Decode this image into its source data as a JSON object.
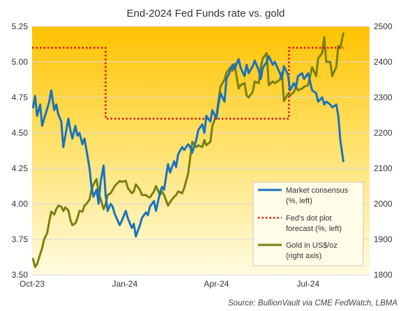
{
  "chart_data": {
    "type": "line",
    "title": "End-2024 Fed Funds rate vs. gold",
    "source": "Source:  BullionVault via CME FedWatch, LBMA",
    "x_start": "2023-10-01",
    "x_end": "2024-08-31",
    "x_ticks": [
      {
        "label": "Oct-23",
        "date": "2023-10-01"
      },
      {
        "label": "Jan-24",
        "date": "2024-01-01"
      },
      {
        "label": "Apr-24",
        "date": "2024-04-01"
      },
      {
        "label": "Jul-24",
        "date": "2024-07-01"
      }
    ],
    "y_left": {
      "ylim": [
        3.5,
        5.25
      ],
      "ticks": [
        "3.50",
        "3.75",
        "4.00",
        "4.25",
        "4.50",
        "4.75",
        "5.00",
        "5.25"
      ],
      "grid": true
    },
    "y_right": {
      "ylim": [
        1800,
        2500
      ],
      "ticks": [
        "1800",
        "1900",
        "2000",
        "2100",
        "2200",
        "2300",
        "2400",
        "2500"
      ]
    },
    "legend": {
      "position": "bottom-right",
      "entries": [
        {
          "line1": "Market consensus",
          "line2": "(%, left)"
        },
        {
          "line1": "Fed's dot plot",
          "line2": "forecast (%, left)"
        },
        {
          "line1": "Gold in US$/oz",
          "line2": "(right axis)"
        }
      ]
    },
    "series": [
      {
        "name": "Market consensus (%, left)",
        "axis": "left",
        "color": "#1a72bb",
        "style": "solid",
        "points": [
          [
            "2023-10-02",
            4.68
          ],
          [
            "2023-10-04",
            4.76
          ],
          [
            "2023-10-06",
            4.62
          ],
          [
            "2023-10-09",
            4.7
          ],
          [
            "2023-10-11",
            4.55
          ],
          [
            "2023-10-13",
            4.6
          ],
          [
            "2023-10-16",
            4.67
          ],
          [
            "2023-10-18",
            4.72
          ],
          [
            "2023-10-20",
            4.8
          ],
          [
            "2023-10-23",
            4.66
          ],
          [
            "2023-10-25",
            4.7
          ],
          [
            "2023-10-27",
            4.63
          ],
          [
            "2023-10-30",
            4.58
          ],
          [
            "2023-11-01",
            4.4
          ],
          [
            "2023-11-03",
            4.48
          ],
          [
            "2023-11-06",
            4.6
          ],
          [
            "2023-11-08",
            4.52
          ],
          [
            "2023-11-10",
            4.46
          ],
          [
            "2023-11-13",
            4.55
          ],
          [
            "2023-11-15",
            4.48
          ],
          [
            "2023-11-17",
            4.5
          ],
          [
            "2023-11-20",
            4.42
          ],
          [
            "2023-11-22",
            4.46
          ],
          [
            "2023-11-24",
            4.38
          ],
          [
            "2023-11-27",
            4.25
          ],
          [
            "2023-11-29",
            4.12
          ],
          [
            "2023-12-01",
            4.05
          ],
          [
            "2023-12-04",
            4.1
          ],
          [
            "2023-12-06",
            4.0
          ],
          [
            "2023-12-08",
            4.15
          ],
          [
            "2023-12-11",
            4.27
          ],
          [
            "2023-12-13",
            4.06
          ],
          [
            "2023-12-15",
            3.95
          ],
          [
            "2023-12-18",
            4.0
          ],
          [
            "2023-12-20",
            3.98
          ],
          [
            "2023-12-22",
            3.93
          ],
          [
            "2023-12-27",
            3.85
          ],
          [
            "2023-12-29",
            3.88
          ],
          [
            "2024-01-02",
            3.95
          ],
          [
            "2024-01-04",
            3.9
          ],
          [
            "2024-01-08",
            3.83
          ],
          [
            "2024-01-10",
            3.86
          ],
          [
            "2024-01-12",
            3.77
          ],
          [
            "2024-01-16",
            3.85
          ],
          [
            "2024-01-18",
            3.9
          ],
          [
            "2024-01-22",
            3.94
          ],
          [
            "2024-01-24",
            3.92
          ],
          [
            "2024-01-26",
            3.98
          ],
          [
            "2024-01-30",
            4.02
          ],
          [
            "2024-02-01",
            3.95
          ],
          [
            "2024-02-05",
            4.08
          ],
          [
            "2024-02-07",
            4.12
          ],
          [
            "2024-02-09",
            4.1
          ],
          [
            "2024-02-13",
            4.28
          ],
          [
            "2024-02-15",
            4.22
          ],
          [
            "2024-02-19",
            4.3
          ],
          [
            "2024-02-21",
            4.26
          ],
          [
            "2024-02-23",
            4.35
          ],
          [
            "2024-02-27",
            4.4
          ],
          [
            "2024-02-29",
            4.38
          ],
          [
            "2024-03-04",
            4.42
          ],
          [
            "2024-03-06",
            4.4
          ],
          [
            "2024-03-08",
            4.36
          ],
          [
            "2024-03-12",
            4.45
          ],
          [
            "2024-03-14",
            4.52
          ],
          [
            "2024-03-18",
            4.56
          ],
          [
            "2024-03-20",
            4.5
          ],
          [
            "2024-03-22",
            4.62
          ],
          [
            "2024-03-26",
            4.58
          ],
          [
            "2024-03-28",
            4.66
          ],
          [
            "2024-04-01",
            4.6
          ],
          [
            "2024-04-03",
            4.7
          ],
          [
            "2024-04-05",
            4.78
          ],
          [
            "2024-04-09",
            4.72
          ],
          [
            "2024-04-11",
            4.88
          ],
          [
            "2024-04-15",
            4.94
          ],
          [
            "2024-04-17",
            4.98
          ],
          [
            "2024-04-19",
            4.95
          ],
          [
            "2024-04-23",
            5.02
          ],
          [
            "2024-04-25",
            4.96
          ],
          [
            "2024-04-29",
            4.9
          ],
          [
            "2024-05-01",
            4.98
          ],
          [
            "2024-05-03",
            4.92
          ],
          [
            "2024-05-07",
            4.97
          ],
          [
            "2024-05-09",
            5.01
          ],
          [
            "2024-05-13",
            4.94
          ],
          [
            "2024-05-15",
            4.88
          ],
          [
            "2024-05-17",
            4.96
          ],
          [
            "2024-05-21",
            5.0
          ],
          [
            "2024-05-23",
            5.04
          ],
          [
            "2024-05-27",
            4.98
          ],
          [
            "2024-05-29",
            5.0
          ],
          [
            "2024-06-03",
            4.92
          ],
          [
            "2024-06-05",
            4.88
          ],
          [
            "2024-06-07",
            4.97
          ],
          [
            "2024-06-11",
            4.91
          ],
          [
            "2024-06-13",
            4.8
          ],
          [
            "2024-06-17",
            4.85
          ],
          [
            "2024-06-19",
            4.82
          ],
          [
            "2024-06-21",
            4.9
          ],
          [
            "2024-06-25",
            4.92
          ],
          [
            "2024-06-27",
            4.88
          ],
          [
            "2024-07-01",
            4.92
          ],
          [
            "2024-07-03",
            4.86
          ],
          [
            "2024-07-05",
            4.8
          ],
          [
            "2024-07-09",
            4.78
          ],
          [
            "2024-07-11",
            4.72
          ],
          [
            "2024-07-15",
            4.75
          ],
          [
            "2024-07-17",
            4.7
          ],
          [
            "2024-07-19",
            4.72
          ],
          [
            "2024-07-23",
            4.7
          ],
          [
            "2024-07-25",
            4.68
          ],
          [
            "2024-07-29",
            4.7
          ],
          [
            "2024-07-31",
            4.62
          ],
          [
            "2024-08-02",
            4.45
          ],
          [
            "2024-08-05",
            4.3
          ]
        ]
      },
      {
        "name": "Fed's dot plot forecast (%, left)",
        "axis": "left",
        "color": "#e01010",
        "style": "dotted",
        "points": [
          [
            "2023-10-01",
            5.1
          ],
          [
            "2023-12-13",
            5.1
          ],
          [
            "2023-12-13",
            4.6
          ],
          [
            "2024-06-12",
            4.6
          ],
          [
            "2024-06-12",
            5.1
          ],
          [
            "2024-08-05",
            5.1
          ]
        ]
      },
      {
        "name": "Gold in US$/oz (right axis)",
        "axis": "right",
        "color": "#7a8010",
        "style": "solid",
        "points": [
          [
            "2023-10-02",
            1845
          ],
          [
            "2023-10-04",
            1822
          ],
          [
            "2023-10-06",
            1830
          ],
          [
            "2023-10-09",
            1858
          ],
          [
            "2023-10-11",
            1875
          ],
          [
            "2023-10-13",
            1900
          ],
          [
            "2023-10-16",
            1918
          ],
          [
            "2023-10-18",
            1950
          ],
          [
            "2023-10-20",
            1978
          ],
          [
            "2023-10-23",
            1970
          ],
          [
            "2023-10-25",
            1985
          ],
          [
            "2023-10-27",
            1995
          ],
          [
            "2023-10-30",
            1992
          ],
          [
            "2023-11-01",
            1980
          ],
          [
            "2023-11-03",
            1990
          ],
          [
            "2023-11-06",
            1982
          ],
          [
            "2023-11-08",
            1955
          ],
          [
            "2023-11-10",
            1940
          ],
          [
            "2023-11-13",
            1945
          ],
          [
            "2023-11-15",
            1960
          ],
          [
            "2023-11-17",
            1980
          ],
          [
            "2023-11-20",
            1978
          ],
          [
            "2023-11-22",
            1995
          ],
          [
            "2023-11-24",
            2000
          ],
          [
            "2023-11-27",
            2012
          ],
          [
            "2023-11-29",
            2040
          ],
          [
            "2023-12-01",
            2055
          ],
          [
            "2023-12-04",
            2070
          ],
          [
            "2023-12-06",
            2030
          ],
          [
            "2023-12-08",
            2015
          ],
          [
            "2023-12-11",
            1985
          ],
          [
            "2023-12-13",
            2000
          ],
          [
            "2023-12-15",
            2025
          ],
          [
            "2023-12-18",
            2030
          ],
          [
            "2023-12-20",
            2040
          ],
          [
            "2023-12-22",
            2050
          ],
          [
            "2023-12-27",
            2065
          ],
          [
            "2023-12-29",
            2062
          ],
          [
            "2024-01-02",
            2065
          ],
          [
            "2024-01-04",
            2045
          ],
          [
            "2024-01-08",
            2030
          ],
          [
            "2024-01-10",
            2035
          ],
          [
            "2024-01-12",
            2055
          ],
          [
            "2024-01-16",
            2040
          ],
          [
            "2024-01-18",
            2025
          ],
          [
            "2024-01-22",
            2025
          ],
          [
            "2024-01-24",
            2020
          ],
          [
            "2024-01-26",
            2018
          ],
          [
            "2024-01-30",
            2035
          ],
          [
            "2024-02-01",
            2050
          ],
          [
            "2024-02-05",
            2025
          ],
          [
            "2024-02-07",
            2035
          ],
          [
            "2024-02-09",
            2025
          ],
          [
            "2024-02-13",
            1995
          ],
          [
            "2024-02-15",
            2005
          ],
          [
            "2024-02-19",
            2020
          ],
          [
            "2024-02-21",
            2025
          ],
          [
            "2024-02-23",
            2035
          ],
          [
            "2024-02-27",
            2030
          ],
          [
            "2024-02-29",
            2045
          ],
          [
            "2024-03-04",
            2085
          ],
          [
            "2024-03-06",
            2130
          ],
          [
            "2024-03-08",
            2175
          ],
          [
            "2024-03-12",
            2160
          ],
          [
            "2024-03-14",
            2165
          ],
          [
            "2024-03-18",
            2160
          ],
          [
            "2024-03-20",
            2180
          ],
          [
            "2024-03-22",
            2165
          ],
          [
            "2024-03-26",
            2175
          ],
          [
            "2024-03-28",
            2220
          ],
          [
            "2024-04-01",
            2250
          ],
          [
            "2024-04-03",
            2290
          ],
          [
            "2024-04-05",
            2330
          ],
          [
            "2024-04-09",
            2350
          ],
          [
            "2024-04-11",
            2370
          ],
          [
            "2024-04-15",
            2385
          ],
          [
            "2024-04-17",
            2375
          ],
          [
            "2024-04-19",
            2395
          ],
          [
            "2024-04-23",
            2325
          ],
          [
            "2024-04-25",
            2335
          ],
          [
            "2024-04-29",
            2340
          ],
          [
            "2024-05-01",
            2305
          ],
          [
            "2024-05-03",
            2300
          ],
          [
            "2024-05-07",
            2315
          ],
          [
            "2024-05-09",
            2345
          ],
          [
            "2024-05-13",
            2340
          ],
          [
            "2024-05-15",
            2385
          ],
          [
            "2024-05-17",
            2410
          ],
          [
            "2024-05-21",
            2425
          ],
          [
            "2024-05-23",
            2335
          ],
          [
            "2024-05-27",
            2345
          ],
          [
            "2024-05-29",
            2340
          ],
          [
            "2024-06-03",
            2350
          ],
          [
            "2024-06-05",
            2370
          ],
          [
            "2024-06-07",
            2290
          ],
          [
            "2024-06-11",
            2310
          ],
          [
            "2024-06-13",
            2305
          ],
          [
            "2024-06-17",
            2315
          ],
          [
            "2024-06-19",
            2330
          ],
          [
            "2024-06-21",
            2320
          ],
          [
            "2024-06-25",
            2325
          ],
          [
            "2024-06-27",
            2330
          ],
          [
            "2024-07-01",
            2335
          ],
          [
            "2024-07-03",
            2360
          ],
          [
            "2024-07-05",
            2385
          ],
          [
            "2024-07-09",
            2360
          ],
          [
            "2024-07-11",
            2410
          ],
          [
            "2024-07-15",
            2425
          ],
          [
            "2024-07-17",
            2470
          ],
          [
            "2024-07-19",
            2400
          ],
          [
            "2024-07-23",
            2400
          ],
          [
            "2024-07-25",
            2360
          ],
          [
            "2024-07-29",
            2385
          ],
          [
            "2024-07-31",
            2445
          ],
          [
            "2024-08-02",
            2440
          ],
          [
            "2024-08-05",
            2480
          ]
        ]
      }
    ]
  }
}
